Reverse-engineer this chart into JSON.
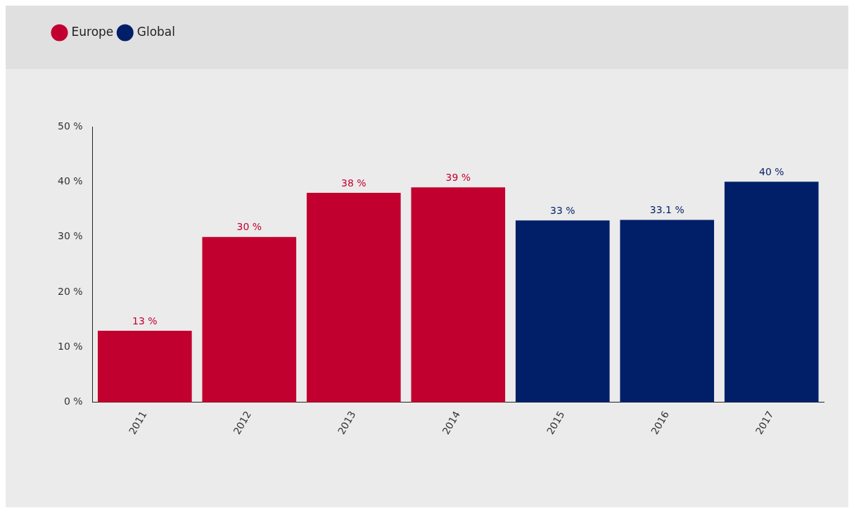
{
  "chart_data": {
    "type": "bar",
    "categories": [
      "2011",
      "2012",
      "2013",
      "2014",
      "2015",
      "2016",
      "2017"
    ],
    "series": [
      {
        "name": "Europe",
        "color": "#c2002f",
        "values": [
          13,
          30,
          38,
          39,
          null,
          null,
          null
        ],
        "value_labels": [
          "13 %",
          "30 %",
          "38 %",
          "39 %",
          null,
          null,
          null
        ]
      },
      {
        "name": "Global",
        "color": "#001f68",
        "values": [
          null,
          null,
          null,
          null,
          33,
          33.1,
          40
        ],
        "value_labels": [
          null,
          null,
          null,
          null,
          "33 %",
          "33.1 %",
          "40 %"
        ]
      }
    ],
    "ylim": [
      0,
      50
    ],
    "yticks": [
      {
        "value": 0,
        "label": "0 %"
      },
      {
        "value": 10,
        "label": "10 %"
      },
      {
        "value": 20,
        "label": "20 %"
      },
      {
        "value": 30,
        "label": "30 %"
      },
      {
        "value": 40,
        "label": "40 %"
      },
      {
        "value": 50,
        "label": "50 %"
      }
    ],
    "grid": false,
    "legend": "top left"
  }
}
